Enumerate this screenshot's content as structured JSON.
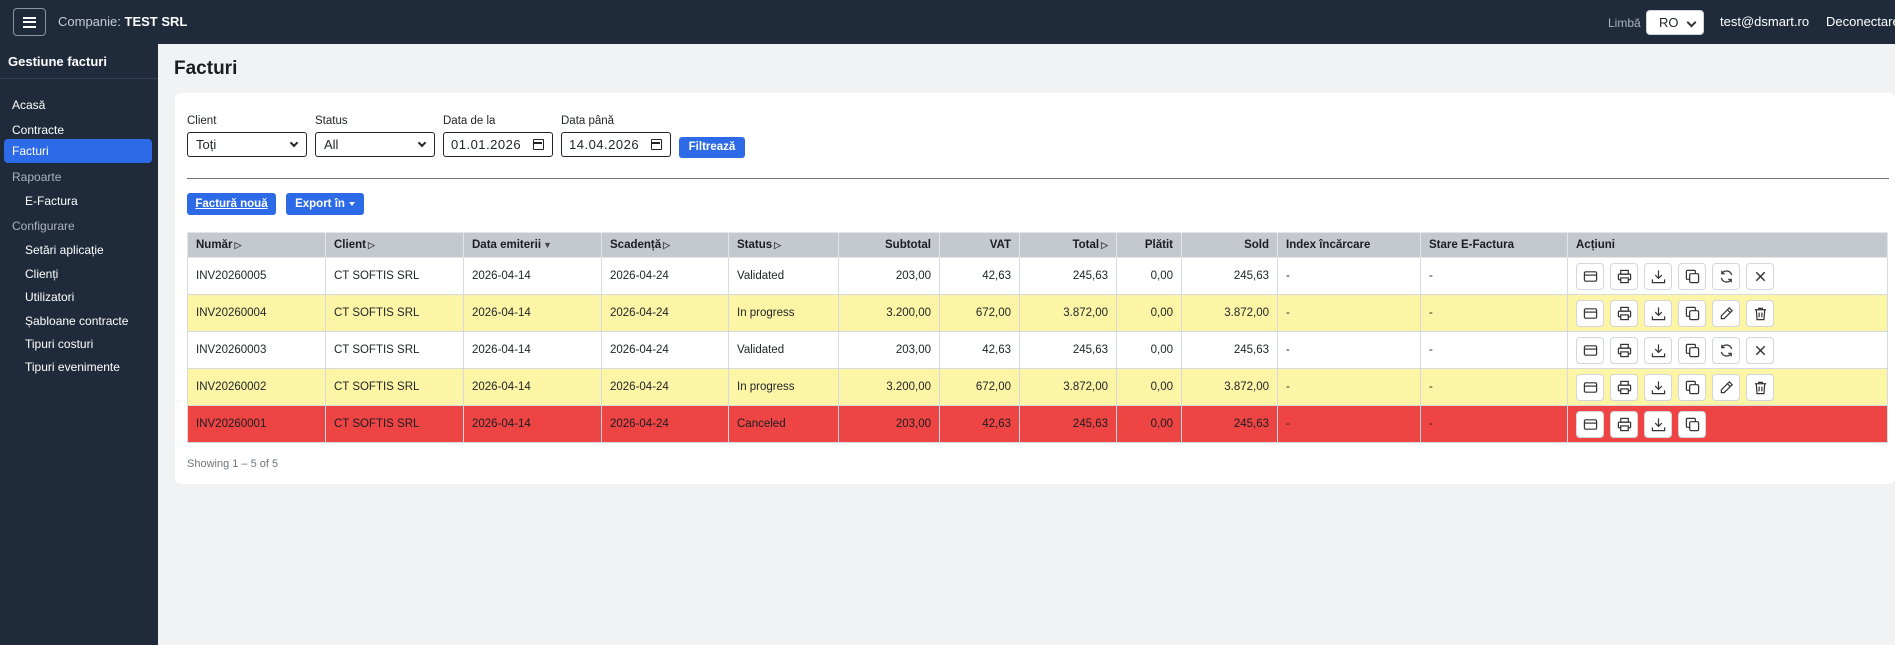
{
  "header": {
    "company_label": "Companie:",
    "company_name": "TEST SRL",
    "language_label": "Limbă",
    "language_value": "RO",
    "user_email": "test@dsmart.ro",
    "logout_label": "Deconectare"
  },
  "sidebar": {
    "title": "Gestiune facturi",
    "items": [
      {
        "label": "Acasă"
      },
      {
        "label": "Contracte"
      },
      {
        "label": "Facturi",
        "active": true
      }
    ],
    "reports_group": "Rapoarte",
    "reports_items": [
      {
        "label": "E-Factura"
      }
    ],
    "config_group": "Configurare",
    "config_items": [
      {
        "label": "Setări aplicație"
      },
      {
        "label": "Clienți"
      },
      {
        "label": "Utilizatori"
      },
      {
        "label": "Șabloane contracte"
      },
      {
        "label": "Tipuri costuri"
      },
      {
        "label": "Tipuri evenimente"
      }
    ]
  },
  "page": {
    "title": "Facturi"
  },
  "filters": {
    "client_label": "Client",
    "client_value": "Toți",
    "status_label": "Status",
    "status_value": "All",
    "date_from_label": "Data de la",
    "date_from_value": "01.01.2026",
    "date_to_label": "Data până",
    "date_to_value": "14.04.2026",
    "filter_button": "Filtrează"
  },
  "toolbar": {
    "new_invoice": "Factură nouă",
    "export": "Export în"
  },
  "table": {
    "columns": [
      "Număr",
      "Client",
      "Data emiterii",
      "Scadență",
      "Status",
      "Subtotal",
      "VAT",
      "Total",
      "Plătit",
      "Sold",
      "Index încărcare",
      "Stare E-Factura",
      "Acțiuni"
    ],
    "rows": [
      {
        "number": "INV20260005",
        "client": "CT SOFTIS SRL",
        "issue_date": "2026-04-14",
        "due_date": "2026-04-24",
        "status": "Validated",
        "subtotal": "203,00",
        "vat": "42,63",
        "total": "245,63",
        "paid": "0,00",
        "balance": "245,63",
        "upload_index": "-",
        "efactura_state": "-",
        "color": "white",
        "actions": [
          "card-icon",
          "print-icon",
          "download-icon",
          "copy-icon",
          "refresh-icon",
          "close-icon"
        ]
      },
      {
        "number": "INV20260004",
        "client": "CT SOFTIS SRL",
        "issue_date": "2026-04-14",
        "due_date": "2026-04-24",
        "status": "In progress",
        "subtotal": "3.200,00",
        "vat": "672,00",
        "total": "3.872,00",
        "paid": "0,00",
        "balance": "3.872,00",
        "upload_index": "-",
        "efactura_state": "-",
        "color": "yellow",
        "actions": [
          "card-icon",
          "print-icon",
          "download-icon",
          "copy-icon",
          "edit-icon",
          "trash-icon"
        ]
      },
      {
        "number": "INV20260003",
        "client": "CT SOFTIS SRL",
        "issue_date": "2026-04-14",
        "due_date": "2026-04-24",
        "status": "Validated",
        "subtotal": "203,00",
        "vat": "42,63",
        "total": "245,63",
        "paid": "0,00",
        "balance": "245,63",
        "upload_index": "-",
        "efactura_state": "-",
        "color": "white",
        "actions": [
          "card-icon",
          "print-icon",
          "download-icon",
          "copy-icon",
          "refresh-icon",
          "close-icon"
        ]
      },
      {
        "number": "INV20260002",
        "client": "CT SOFTIS SRL",
        "issue_date": "2026-04-14",
        "due_date": "2026-04-24",
        "status": "In progress",
        "subtotal": "3.200,00",
        "vat": "672,00",
        "total": "3.872,00",
        "paid": "0,00",
        "balance": "3.872,00",
        "upload_index": "-",
        "efactura_state": "-",
        "color": "yellow",
        "actions": [
          "card-icon",
          "print-icon",
          "download-icon",
          "copy-icon",
          "edit-icon",
          "trash-icon"
        ]
      },
      {
        "number": "INV20260001",
        "client": "CT SOFTIS SRL",
        "issue_date": "2026-04-14",
        "due_date": "2026-04-24",
        "status": "Canceled",
        "subtotal": "203,00",
        "vat": "42,63",
        "total": "245,63",
        "paid": "0,00",
        "balance": "245,63",
        "upload_index": "-",
        "efactura_state": "-",
        "color": "red",
        "actions": [
          "card-icon",
          "print-icon",
          "download-icon",
          "copy-icon"
        ]
      }
    ],
    "footer": "Showing 1 – 5 of 5"
  },
  "colors": {
    "topbar": "#1f2a3b",
    "accent": "#2d6ae8",
    "row_yellow": "#fdf5a6",
    "row_red": "#ef4444",
    "header_gray": "#c4c8cf"
  }
}
